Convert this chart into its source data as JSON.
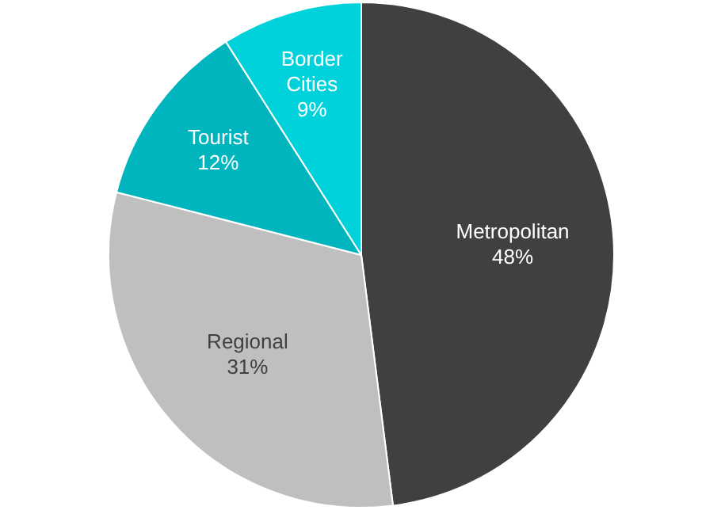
{
  "chart_data": {
    "type": "pie",
    "categories": [
      "Metropolitan",
      "Regional",
      "Tourist",
      "Border Cities"
    ],
    "values": [
      48,
      31,
      12,
      9
    ],
    "colors": [
      "#404040",
      "#bfbfbf",
      "#00b5be",
      "#00d2dc"
    ],
    "value_labels": [
      "48%",
      "31%",
      "12%",
      "9%"
    ],
    "legend": false
  }
}
